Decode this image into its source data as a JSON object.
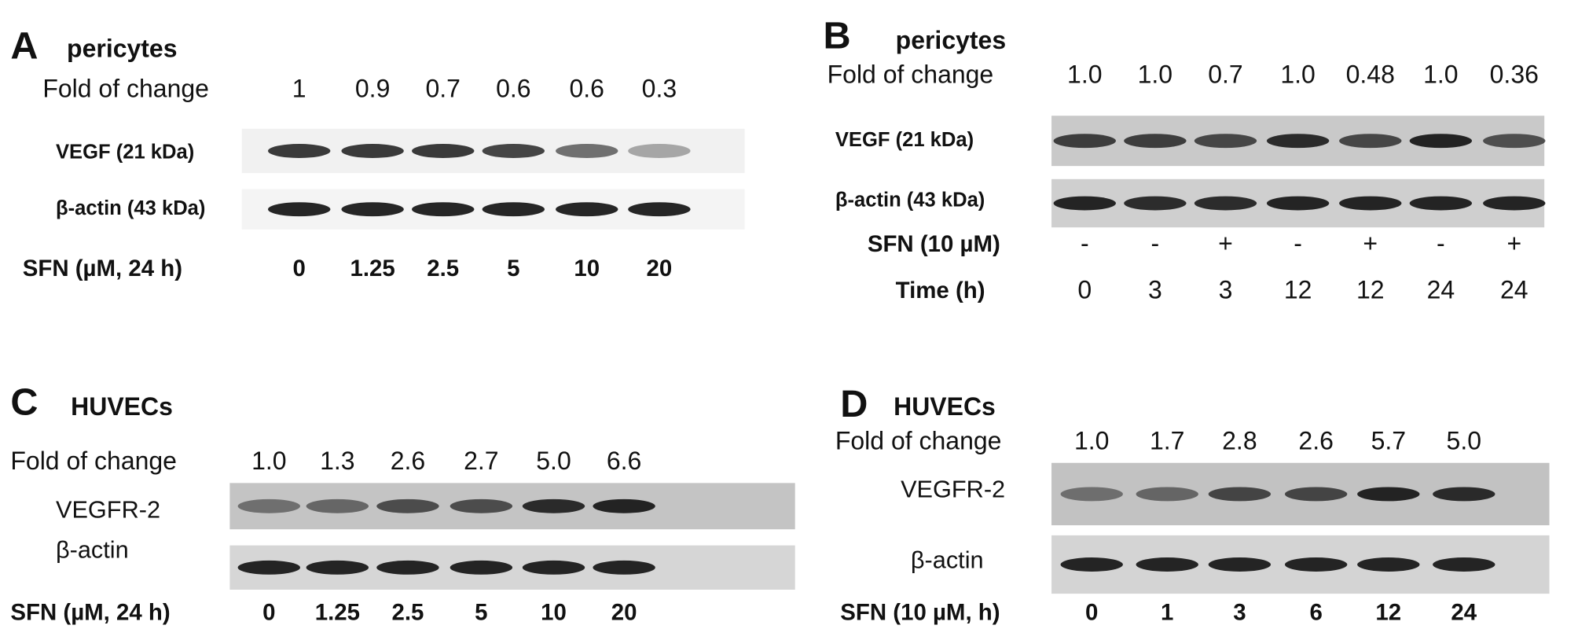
{
  "panels": [
    {
      "letter": "A",
      "title": "pericytes",
      "fold_label": "Fold of change",
      "fold_values": [
        "1",
        "0.9",
        "0.7",
        "0.6",
        "0.6",
        "0.3"
      ],
      "rows": [
        {
          "label": "VEGF (21 kDa)"
        },
        {
          "label": "β-actin (43 kDa)"
        }
      ],
      "conditions": [
        {
          "label": "SFN (µM, 24 h)",
          "values": [
            "0",
            "1.25",
            "2.5",
            "5",
            "10",
            "20"
          ]
        }
      ]
    },
    {
      "letter": "B",
      "title": "pericytes",
      "fold_label": "Fold of change",
      "fold_values": [
        "1.0",
        "1.0",
        "0.7",
        "1.0",
        "0.48",
        "1.0",
        "0.36"
      ],
      "rows": [
        {
          "label": "VEGF (21 kDa)"
        },
        {
          "label": "β-actin (43 kDa)"
        }
      ],
      "conditions": [
        {
          "label": "SFN (10 µM)",
          "values": [
            "-",
            "-",
            "+",
            "-",
            "+",
            "-",
            "+"
          ]
        },
        {
          "label": "Time (h)",
          "values": [
            "0",
            "3",
            "3",
            "12",
            "12",
            "24",
            "24"
          ]
        }
      ]
    },
    {
      "letter": "C",
      "title": "HUVECs",
      "fold_label": "Fold of change",
      "fold_values": [
        "1.0",
        "1.3",
        "2.6",
        "2.7",
        "5.0",
        "6.6"
      ],
      "rows": [
        {
          "label": "VEGFR-2"
        },
        {
          "label": "β-actin"
        }
      ],
      "conditions": [
        {
          "label": "SFN (µM, 24 h)",
          "values": [
            "0",
            "1.25",
            "2.5",
            "5",
            "10",
            "20"
          ]
        }
      ]
    },
    {
      "letter": "D",
      "title": "HUVECs",
      "fold_label": "Fold of change",
      "fold_values": [
        "1.0",
        "1.7",
        "2.8",
        "2.6",
        "5.7",
        "5.0"
      ],
      "rows": [
        {
          "label": "VEGFR-2"
        },
        {
          "label": "β-actin"
        }
      ],
      "conditions": [
        {
          "label": "SFN (10 µM, h)",
          "values": [
            "0",
            "1",
            "3",
            "6",
            "12",
            "24"
          ]
        }
      ]
    }
  ]
}
